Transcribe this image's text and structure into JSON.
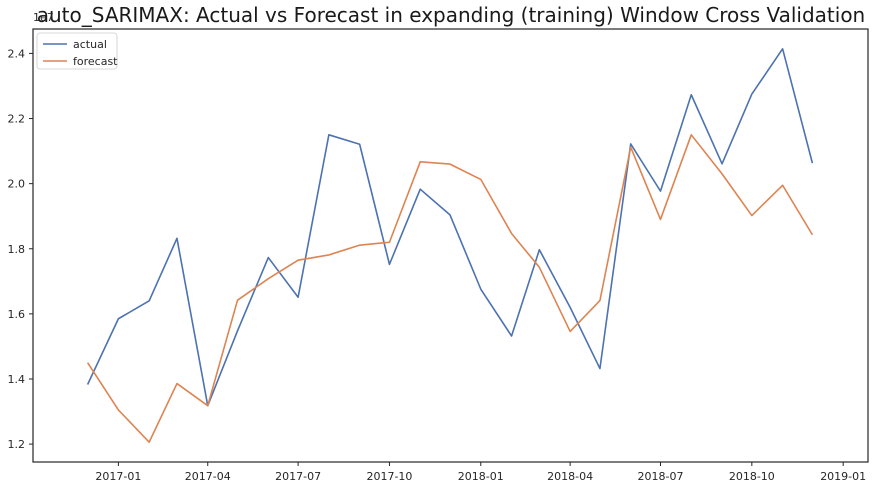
{
  "chart_data": {
    "type": "line",
    "title": "auto_SARIMAX: Actual vs Forecast in expanding (training) Window Cross Validation",
    "xlabel": "",
    "ylabel": "",
    "y_multiplier_label": "1e7",
    "x": [
      "2016-12-01",
      "2017-01-01",
      "2017-02-01",
      "2017-03-01",
      "2017-04-01",
      "2017-05-01",
      "2017-06-01",
      "2017-07-01",
      "2017-08-01",
      "2017-09-01",
      "2017-10-01",
      "2017-11-01",
      "2017-12-01",
      "2018-01-01",
      "2018-02-01",
      "2018-03-01",
      "2018-04-01",
      "2018-05-01",
      "2018-06-01",
      "2018-07-01",
      "2018-08-01",
      "2018-09-01",
      "2018-10-01",
      "2018-11-01",
      "2018-12-01"
    ],
    "xlim": [
      "2016-10-07",
      "2019-01-26"
    ],
    "ylim": [
      1.145,
      2.475
    ],
    "x_ticks": [
      {
        "date": "2017-01-01",
        "label": "2017-01"
      },
      {
        "date": "2017-04-01",
        "label": "2017-04"
      },
      {
        "date": "2017-07-01",
        "label": "2017-07"
      },
      {
        "date": "2017-10-01",
        "label": "2017-10"
      },
      {
        "date": "2018-01-01",
        "label": "2018-01"
      },
      {
        "date": "2018-04-01",
        "label": "2018-04"
      },
      {
        "date": "2018-07-01",
        "label": "2018-07"
      },
      {
        "date": "2018-10-01",
        "label": "2018-10"
      },
      {
        "date": "2019-01-01",
        "label": "2019-01"
      }
    ],
    "y_ticks": [
      {
        "value": 1.2,
        "label": "1.2"
      },
      {
        "value": 1.4,
        "label": "1.4"
      },
      {
        "value": 1.6,
        "label": "1.6"
      },
      {
        "value": 1.8,
        "label": "1.8"
      },
      {
        "value": 2.0,
        "label": "2.0"
      },
      {
        "value": 2.2,
        "label": "2.2"
      },
      {
        "value": 2.4,
        "label": "2.4"
      }
    ],
    "grid": false,
    "legend_position": "upper left",
    "series": [
      {
        "name": "actual",
        "color": "#4c72b0",
        "values": [
          1.383,
          1.585,
          1.64,
          1.832,
          1.318,
          1.548,
          1.773,
          1.651,
          2.15,
          2.121,
          1.752,
          1.983,
          1.904,
          1.676,
          1.532,
          1.797,
          1.62,
          1.432,
          2.122,
          1.977,
          2.273,
          2.061,
          2.275,
          2.414,
          2.063
        ]
      },
      {
        "name": "forecast",
        "color": "#dd8452",
        "values": [
          1.45,
          1.305,
          1.206,
          1.386,
          1.318,
          1.642,
          1.708,
          1.765,
          1.781,
          1.811,
          1.82,
          2.067,
          2.06,
          2.013,
          1.847,
          1.743,
          1.546,
          1.641,
          2.112,
          1.89,
          2.15,
          2.03,
          1.902,
          1.995,
          1.843
        ]
      }
    ]
  }
}
